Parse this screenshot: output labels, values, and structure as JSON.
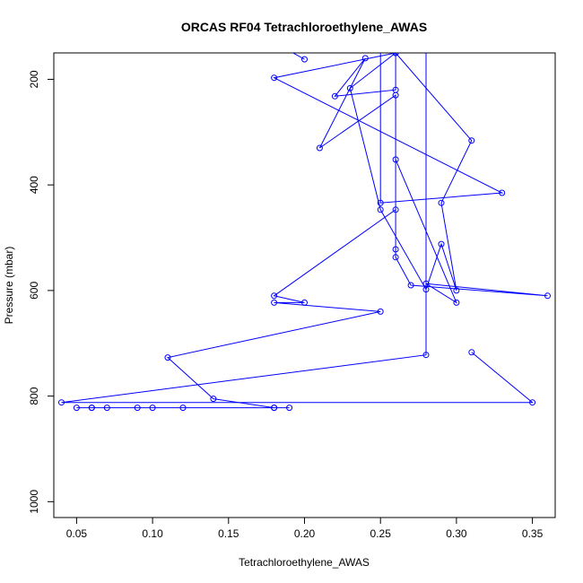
{
  "chart_data": {
    "type": "scatter",
    "title": "ORCAS RF04 Tetrachloroethylene_AWAS",
    "xlabel": "Tetrachloroethylene_AWAS",
    "ylabel": "Pressure (mbar)",
    "xlim": [
      0.035,
      0.365
    ],
    "ylim": [
      1030,
      150
    ],
    "y_reversed": true,
    "grid": false,
    "x_ticks": [
      0.05,
      0.1,
      0.15,
      0.2,
      0.25,
      0.3,
      0.35
    ],
    "x_tick_labels": [
      "0.05",
      "0.10",
      "0.15",
      "0.20",
      "0.25",
      "0.30",
      "0.35"
    ],
    "y_ticks": [
      200,
      400,
      600,
      800,
      1000
    ],
    "y_tick_labels": [
      "200",
      "400",
      "600",
      "800",
      "1000"
    ],
    "color": "#0000ff",
    "series": [
      {
        "x": [
          0.05,
          0.06,
          0.07,
          0.09,
          0.1,
          0.12,
          0.18,
          0.19,
          0.06,
          0.18,
          0.14,
          0.11,
          0.25,
          0.18,
          0.2,
          0.18,
          0.26,
          0.26,
          0.3,
          0.28,
          0.36,
          0.27,
          0.26,
          0.26,
          0.26,
          0.21,
          0.24,
          0.22,
          0.26,
          0.26,
          0.31,
          0.29,
          0.3,
          0.29,
          0.28,
          0.25,
          0.23,
          0.26,
          0.18,
          0.33,
          0.25,
          0.25
        ],
        "y": [
          822,
          822,
          822,
          822,
          822,
          822,
          822,
          822,
          822,
          822,
          805,
          727,
          640,
          623,
          623,
          610,
          447,
          352,
          623,
          587,
          610,
          590,
          537,
          522,
          230,
          330,
          160,
          232,
          220,
          150,
          316,
          434,
          600,
          512,
          598,
          447,
          217,
          150,
          197,
          415,
          434,
          120
        ]
      },
      {
        "x": [
          0.31,
          0.35,
          0.04,
          0.28,
          0.28
        ],
        "y": [
          717,
          812,
          812,
          722,
          145
        ]
      },
      {
        "x": [
          0.18,
          0.2
        ],
        "y": [
          130,
          162
        ]
      }
    ]
  }
}
